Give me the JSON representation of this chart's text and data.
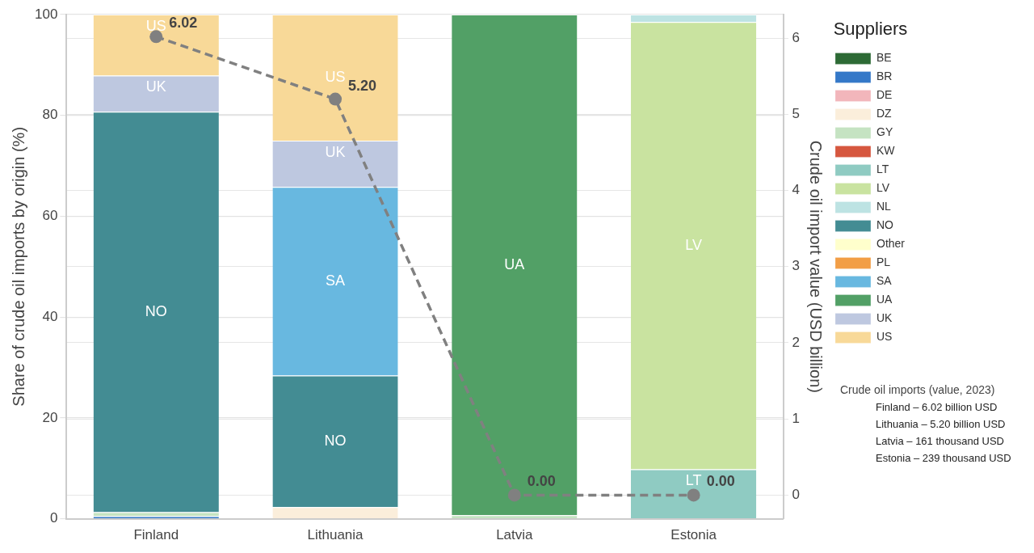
{
  "chart_data": {
    "type": "bar",
    "stacked": true,
    "categories": [
      "Finland",
      "Lithuania",
      "Latvia",
      "Estonia"
    ],
    "ylabel": "Share of crude oil imports by origin (%)",
    "y2label": "Crude oil import value (USD billion)",
    "ylim": [
      0,
      100
    ],
    "yticks": [
      0,
      20,
      40,
      60,
      80,
      100
    ],
    "y2lim": [
      -0.31,
      6.31
    ],
    "y2ticks": [
      0,
      1,
      2,
      3,
      4,
      5,
      6
    ],
    "legend": "right",
    "legend_title": "Suppliers",
    "grid": true,
    "annotations": [
      "Crude oil imports (value, 2023)",
      "Finland – 6.02 billion USD",
      "Lithuania – 5.20 billion USD",
      "Latvia – 161 thousand USD",
      "Estonia – 239 thousand USD"
    ],
    "series": [
      {
        "name": "BE",
        "color": "#2d6a35",
        "values": [
          0,
          0,
          0,
          0
        ]
      },
      {
        "name": "BR",
        "color": "#3478c8",
        "values": [
          0.5,
          0,
          0,
          0
        ]
      },
      {
        "name": "DE",
        "color": "#f2b6bb",
        "values": [
          0,
          0,
          0,
          0
        ]
      },
      {
        "name": "DZ",
        "color": "#fbeedb",
        "values": [
          0,
          2.3,
          0,
          0
        ]
      },
      {
        "name": "GY",
        "color": "#c5e3c2",
        "values": [
          0.8,
          0,
          0.7,
          0
        ]
      },
      {
        "name": "KW",
        "color": "#d6573f",
        "values": [
          0,
          0,
          0,
          0
        ]
      },
      {
        "name": "LT",
        "color": "#8fcbc2",
        "values": [
          0,
          0,
          0,
          9.8
        ]
      },
      {
        "name": "LV",
        "color": "#c9e3a0",
        "values": [
          0,
          0,
          0,
          88.7
        ]
      },
      {
        "name": "NL",
        "color": "#bde3e3",
        "values": [
          0,
          0,
          0,
          1.5
        ]
      },
      {
        "name": "NO",
        "color": "#438c93",
        "values": [
          79.4,
          26.1,
          0,
          0
        ]
      },
      {
        "name": "Other",
        "color": "#ffffcc",
        "values": [
          0,
          0,
          0,
          0
        ]
      },
      {
        "name": "PL",
        "color": "#f29e46",
        "values": [
          0,
          0,
          0,
          0
        ]
      },
      {
        "name": "SA",
        "color": "#68b8e0",
        "values": [
          0,
          37.4,
          0,
          0
        ]
      },
      {
        "name": "UA",
        "color": "#52a066",
        "values": [
          0,
          0,
          99.3,
          0
        ]
      },
      {
        "name": "UK",
        "color": "#bec8e0",
        "values": [
          7.2,
          9.2,
          0,
          0
        ]
      },
      {
        "name": "US",
        "color": "#f8d998",
        "values": [
          12.1,
          25,
          0,
          0
        ]
      },
      {
        "type": "line",
        "axis": "y2",
        "color": "#808080",
        "line_style": "dashed",
        "marker": "circle",
        "values": [
          6.02,
          5.2,
          0,
          0
        ],
        "value_labels": [
          "6.02",
          "5.20",
          "0.00",
          "0.00"
        ]
      }
    ]
  }
}
